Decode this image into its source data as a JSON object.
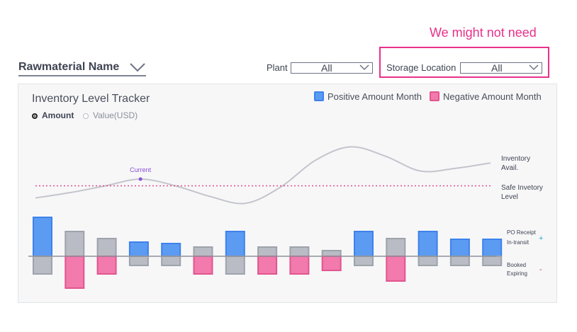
{
  "annotation": {
    "note": "We might not need",
    "color": "#e8318a"
  },
  "header": {
    "rawmaterial_label": "Rawmaterial Name"
  },
  "filters": {
    "plant": {
      "label": "Plant",
      "value": "All"
    },
    "storage": {
      "label": "Storage Location",
      "value": "All"
    }
  },
  "card": {
    "title": "Inventory Level Tracker",
    "radio_options": [
      {
        "label": "Amount",
        "selected": true
      },
      {
        "label": "Value(USD)",
        "selected": false
      }
    ],
    "legend": [
      {
        "label": "Positive Amount Month",
        "color": "#4a8df0"
      },
      {
        "label": "Negative Amount Month",
        "color": "#f06aa0"
      }
    ]
  },
  "chart_data": {
    "type": "bar",
    "line_series": {
      "name": "Inventory Avail.",
      "values": [
        0.3,
        0.5,
        0.75,
        1.0,
        0.75,
        0.35,
        0.1,
        0.7,
        1.7,
        2.2,
        1.85,
        1.3,
        1.4,
        1.6
      ],
      "current_index": 3,
      "current_label": "Current"
    },
    "safe_level": {
      "name": "Safe Invetory Level",
      "value": 0.75
    },
    "bars": [
      {
        "up": 5.5,
        "down": 2.5,
        "up_type": "positive",
        "down_type": "neutral"
      },
      {
        "up": 3.5,
        "down": 4.5,
        "up_type": "neutral",
        "down_type": "negative"
      },
      {
        "up": 2.5,
        "down": 2.5,
        "up_type": "neutral",
        "down_type": "negative"
      },
      {
        "up": 2.0,
        "down": 1.3,
        "up_type": "positive",
        "down_type": "neutral"
      },
      {
        "up": 1.8,
        "down": 1.3,
        "up_type": "positive",
        "down_type": "neutral"
      },
      {
        "up": 1.3,
        "down": 2.5,
        "up_type": "neutral",
        "down_type": "negative"
      },
      {
        "up": 3.5,
        "down": 2.5,
        "up_type": "positive",
        "down_type": "neutral"
      },
      {
        "up": 1.3,
        "down": 2.5,
        "up_type": "neutral",
        "down_type": "negative"
      },
      {
        "up": 1.3,
        "down": 2.5,
        "up_type": "neutral",
        "down_type": "negative"
      },
      {
        "up": 0.8,
        "down": 2.0,
        "up_type": "neutral",
        "down_type": "negative"
      },
      {
        "up": 3.5,
        "down": 1.3,
        "up_type": "positive",
        "down_type": "neutral"
      },
      {
        "up": 2.5,
        "down": 3.5,
        "up_type": "neutral",
        "down_type": "negative"
      },
      {
        "up": 3.5,
        "down": 1.3,
        "up_type": "positive",
        "down_type": "neutral"
      },
      {
        "up": 2.4,
        "down": 1.3,
        "up_type": "positive",
        "down_type": "neutral"
      },
      {
        "up": 2.4,
        "down": 1.3,
        "up_type": "positive",
        "down_type": "neutral"
      }
    ],
    "right_labels": {
      "inventory": [
        "Inventory",
        "Avail."
      ],
      "safe": [
        "Safe Invetory",
        "Level"
      ],
      "po": [
        "PO Receipt",
        "In-transit"
      ],
      "po_sign": "+",
      "booked": [
        "Booked",
        "Expiring"
      ],
      "booked_sign": "-"
    },
    "colors": {
      "positive_fill": "#5b9bf2",
      "positive_stroke": "#3e82ec",
      "negative_fill": "#f27aac",
      "negative_stroke": "#e2558e",
      "neutral_fill": "#b9bcc4",
      "neutral_stroke": "#9ea2ab",
      "line": "#c3c5cc",
      "safe": "#e04d86",
      "current": "#8a4fd9",
      "plus": "#2aa7d8",
      "minus": "#e0335f"
    }
  }
}
